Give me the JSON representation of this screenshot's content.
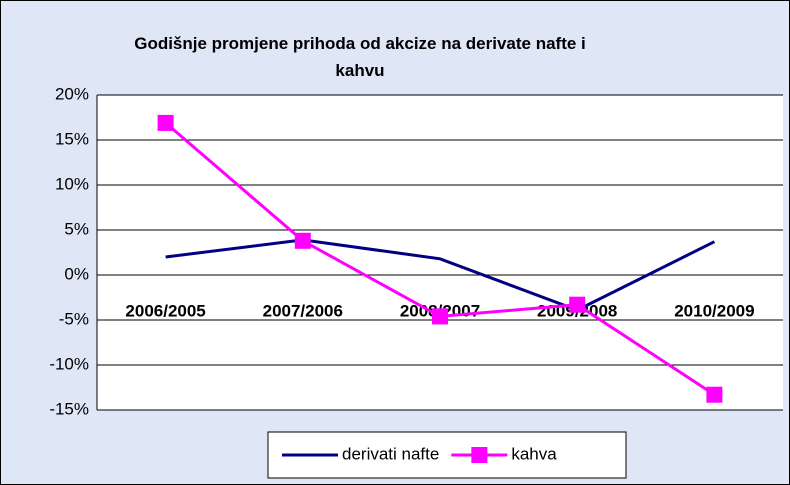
{
  "chart_data": {
    "type": "line",
    "title": "Godišnje promjene prihoda od akcize na derivate nafte i kahvu",
    "categories": [
      "2006/2005",
      "2007/2006",
      "2008/2007",
      "2009/2008",
      "2010/2009"
    ],
    "series": [
      {
        "name": "derivati nafte",
        "color": "#000080",
        "marker": "none",
        "values": [
          2.0,
          3.9,
          1.8,
          -3.9,
          3.7
        ]
      },
      {
        "name": "kahva",
        "color": "#ff00ff",
        "marker": "square",
        "values": [
          16.9,
          3.8,
          -4.6,
          -3.3,
          -13.3
        ]
      }
    ],
    "ylim": [
      -15,
      20
    ],
    "yticks": [
      {
        "value": 20,
        "label": "20%"
      },
      {
        "value": 15,
        "label": "15%"
      },
      {
        "value": 10,
        "label": "10%"
      },
      {
        "value": 5,
        "label": "5%"
      },
      {
        "value": 0,
        "label": "0%"
      },
      {
        "value": -5,
        "label": "-5%"
      },
      {
        "value": -10,
        "label": "-10%"
      },
      {
        "value": -15,
        "label": "-15%"
      }
    ],
    "grid": true,
    "legend": "bottom"
  }
}
